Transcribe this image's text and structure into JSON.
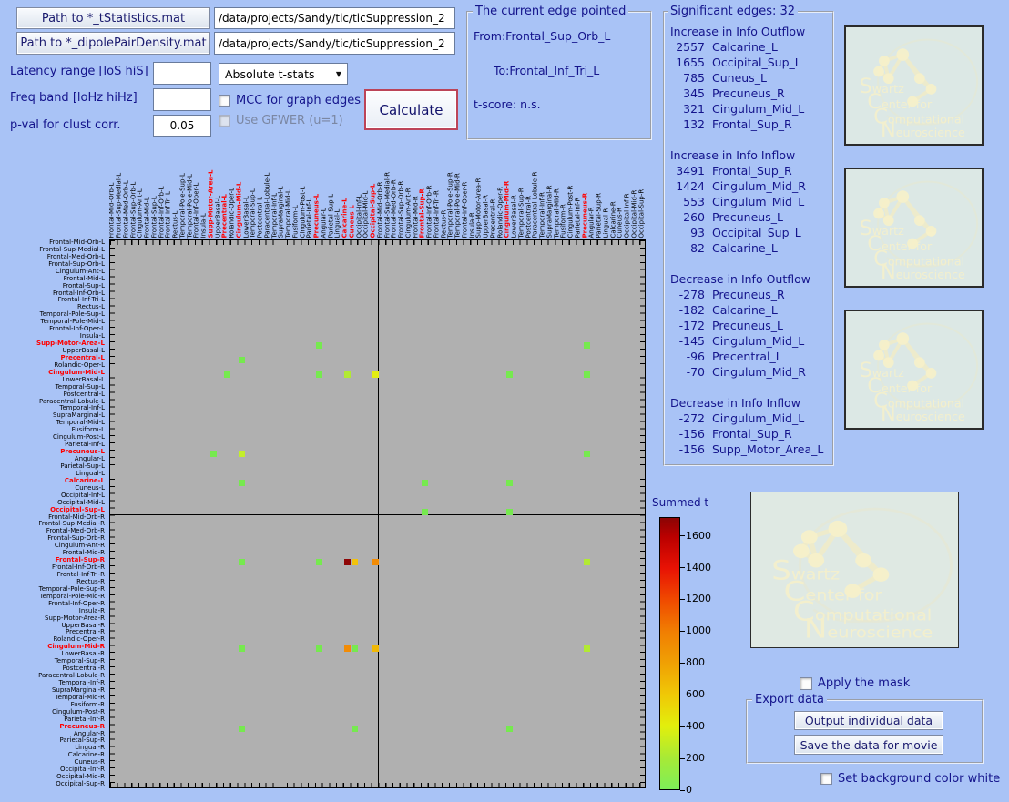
{
  "window": {
    "bg": "#a9c3f6"
  },
  "file_inputs": {
    "tstat_button": "Path to *_tStatistics.mat",
    "tstat_path": "/data/projects/Sandy/tic/ticSuppression_2",
    "density_button": "Path to *_dipolePairDensity.mat",
    "density_path": "/data/projects/Sandy/tic/ticSuppression_2"
  },
  "params": {
    "latency_label": "Latency range [loS hiS]",
    "latency_value": "",
    "stat_dropdown_value": "Absolute t-stats",
    "freq_label": "Freq band [loHz hiHz]",
    "freq_value": "",
    "mcc_checkbox_label": "MCC for graph edges",
    "pval_label": "p-val for clust corr.",
    "pval_value": "0.05",
    "gfwer_checkbox_label": "Use GFWER (u=1)",
    "calculate_button": "Calculate"
  },
  "current_edge": {
    "title": "The current edge pointed",
    "from": "From:Frontal_Sup_Orb_L",
    "to": "To:Frontal_Inf_Tri_L",
    "tscore": "t-score: n.s."
  },
  "significant": {
    "title": "Significant edges: 32",
    "sections": [
      {
        "heading": "Increase in Info Outflow",
        "items": [
          [
            "2557",
            "Calcarine_L"
          ],
          [
            "1655",
            "Occipital_Sup_L"
          ],
          [
            "785",
            "Cuneus_L"
          ],
          [
            "345",
            "Precuneus_R"
          ],
          [
            "321",
            "Cingulum_Mid_L"
          ],
          [
            "132",
            "Frontal_Sup_R"
          ]
        ]
      },
      {
        "heading": "Increase in Info Inflow",
        "items": [
          [
            "3491",
            "Frontal_Sup_R"
          ],
          [
            "1424",
            "Cingulum_Mid_R"
          ],
          [
            "553",
            "Cingulum_Mid_L"
          ],
          [
            "260",
            "Precuneus_L"
          ],
          [
            "93",
            "Occipital_Sup_L"
          ],
          [
            "82",
            "Calcarine_L"
          ]
        ]
      },
      {
        "heading": "Decrease in Info Outflow",
        "items": [
          [
            "-278",
            "Precuneus_R"
          ],
          [
            "-182",
            "Calcarine_L"
          ],
          [
            "-172",
            "Precuneus_L"
          ],
          [
            "-145",
            "Cingulum_Mid_L"
          ],
          [
            "-96",
            "Precentral_L"
          ],
          [
            "-70",
            "Cingulum_Mid_R"
          ]
        ]
      },
      {
        "heading": "Decrease in Info Inflow",
        "items": [
          [
            "-272",
            "Cingulum_Mid_L"
          ],
          [
            "-156",
            "Frontal_Sup_R"
          ],
          [
            "-156",
            "Supp_Motor_Area_L"
          ]
        ]
      }
    ]
  },
  "matrix": {
    "type": "heatmap",
    "plot_bg": "#b0b0b0",
    "red_label_color": "#ff0000",
    "regions": [
      "Frontal-Mid-Orb-L",
      "Frontal-Sup-Medial-L",
      "Frontal-Med-Orb-L",
      "Frontal-Sup-Orb-L",
      "Cingulum-Ant-L",
      "Frontal-Mid-L",
      "Frontal-Sup-L",
      "Frontal-Inf-Orb-L",
      "Frontal-Inf-Tri-L",
      "Rectus-L",
      "Temporal-Pole-Sup-L",
      "Temporal-Pole-Mid-L",
      "Frontal-Inf-Oper-L",
      "Insula-L",
      "Supp-Motor-Area-L",
      "UpperBasal-L",
      "Precentral-L",
      "Rolandic-Oper-L",
      "Cingulum-Mid-L",
      "LowerBasal-L",
      "Temporal-Sup-L",
      "Postcentral-L",
      "Paracentral-Lobule-L",
      "Temporal-Inf-L",
      "SupraMarginal-L",
      "Temporal-Mid-L",
      "Fusiform-L",
      "Cingulum-Post-L",
      "Parietal-Inf-L",
      "Precuneus-L",
      "Angular-L",
      "Parietal-Sup-L",
      "Lingual-L",
      "Calcarine-L",
      "Cuneus-L",
      "Occipital-Inf-L",
      "Occipital-Mid-L",
      "Occipital-Sup-L",
      "Frontal-Mid-Orb-R",
      "Frontal-Sup-Medial-R",
      "Frontal-Med-Orb-R",
      "Frontal-Sup-Orb-R",
      "Cingulum-Ant-R",
      "Frontal-Mid-R",
      "Frontal-Sup-R",
      "Frontal-Inf-Orb-R",
      "Frontal-Inf-Tri-R",
      "Rectus-R",
      "Temporal-Pole-Sup-R",
      "Temporal-Pole-Mid-R",
      "Frontal-Inf-Oper-R",
      "Insula-R",
      "Supp-Motor-Area-R",
      "UpperBasal-R",
      "Precentral-R",
      "Rolandic-Oper-R",
      "Cingulum-Mid-R",
      "LowerBasal-R",
      "Temporal-Sup-R",
      "Postcentral-R",
      "Paracentral-Lobule-R",
      "Temporal-Inf-R",
      "SupraMarginal-R",
      "Temporal-Mid-R",
      "Fusiform-R",
      "Cingulum-Post-R",
      "Parietal-Inf-R",
      "Precuneus-R",
      "Angular-R",
      "Parietal-Sup-R",
      "Lingual-R",
      "Calcarine-R",
      "Cuneus-R",
      "Occipital-Inf-R",
      "Occipital-Mid-R",
      "Occipital-Sup-R"
    ],
    "red_rows": [
      14,
      16,
      18,
      29,
      33,
      37,
      44,
      56,
      67
    ],
    "red_cols": [
      14,
      16,
      18,
      29,
      33,
      34,
      37,
      44,
      56,
      67
    ],
    "cells": [
      [
        14,
        29,
        "#76e94f"
      ],
      [
        14,
        67,
        "#76e94f"
      ],
      [
        16,
        18,
        "#76e94f"
      ],
      [
        18,
        16,
        "#76e94f"
      ],
      [
        18,
        29,
        "#76e94f"
      ],
      [
        18,
        33,
        "#b2e933"
      ],
      [
        18,
        37,
        "#e4ee12"
      ],
      [
        18,
        56,
        "#76e94f"
      ],
      [
        18,
        67,
        "#76e94f"
      ],
      [
        29,
        14,
        "#76e94f"
      ],
      [
        29,
        18,
        "#c3ee2b"
      ],
      [
        29,
        67,
        "#76e94f"
      ],
      [
        33,
        18,
        "#76e94f"
      ],
      [
        33,
        44,
        "#76e94f"
      ],
      [
        33,
        56,
        "#76e94f"
      ],
      [
        37,
        44,
        "#76e94f"
      ],
      [
        37,
        56,
        "#76e94f"
      ],
      [
        44,
        18,
        "#76e94f"
      ],
      [
        44,
        29,
        "#76e94f"
      ],
      [
        44,
        33,
        "#8e0606"
      ],
      [
        44,
        34,
        "#f2c30c"
      ],
      [
        44,
        37,
        "#f28c06"
      ],
      [
        44,
        67,
        "#b2e933"
      ],
      [
        56,
        18,
        "#76e94f"
      ],
      [
        56,
        29,
        "#76e94f"
      ],
      [
        56,
        33,
        "#f28c06"
      ],
      [
        56,
        34,
        "#76e94f"
      ],
      [
        56,
        37,
        "#f0b806"
      ],
      [
        56,
        67,
        "#b2e933"
      ],
      [
        67,
        18,
        "#76e94f"
      ],
      [
        67,
        34,
        "#76e94f"
      ],
      [
        67,
        56,
        "#76e94f"
      ]
    ]
  },
  "colorbar": {
    "title": "Summed t",
    "ticks": [
      0,
      200,
      400,
      600,
      800,
      1000,
      1200,
      1400,
      1600
    ],
    "max": 1718,
    "low_color": "#7dee58",
    "high_color": "#8b0404"
  },
  "logo": {
    "lines": [
      "Swartz",
      "Center for",
      "Computational",
      "Neuroscience"
    ]
  },
  "bottom": {
    "mask_checkbox_label": "Apply the mask",
    "export_title": "Export data",
    "output_button": "Output individual data",
    "movie_button": "Save the data for movie",
    "bg_checkbox_label": "Set background color white"
  }
}
